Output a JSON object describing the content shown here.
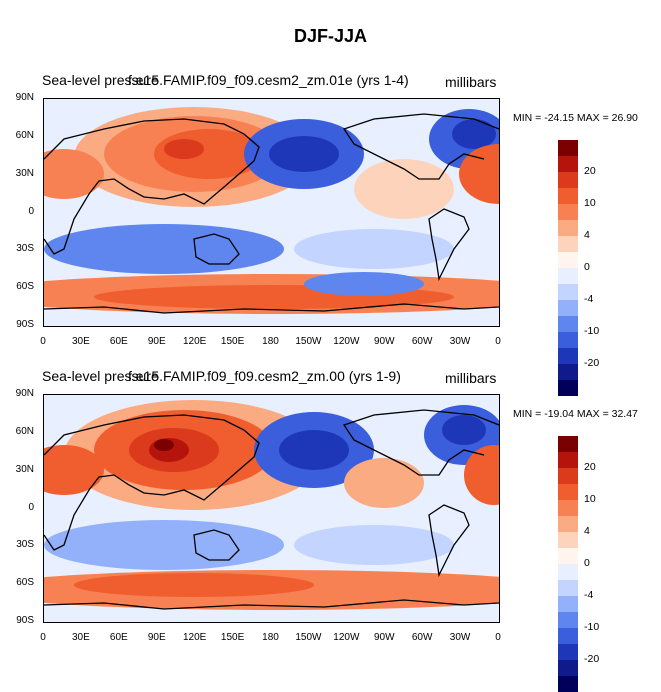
{
  "main_title": "DJF-JJA",
  "colors": {
    "levels": [
      "#7b0000",
      "#b5140c",
      "#db3a1c",
      "#f05d2e",
      "#f88154",
      "#fbab82",
      "#fdd4bb",
      "#fff4ee",
      "#e8efff",
      "#c2d4ff",
      "#93b0fa",
      "#5f86ee",
      "#3a5edc",
      "#1e37b8",
      "#0f1b8a",
      "#00005a"
    ]
  },
  "panels": [
    {
      "left_title": "Sea-level pressure",
      "case_title": "f.e15.FAMIP.f09_f09.cesm2_zm.01e (yrs 1-4)",
      "units": "millibars",
      "min_max": "MIN = -24.15 MAX =  26.90"
    },
    {
      "left_title": "Sea-level pressure",
      "case_title": "f.e15.FAMIP.f09_f09.cesm2_zm.00 (yrs 1-9)",
      "units": "millibars",
      "min_max": "MIN = -19.04 MAX =  32.47"
    }
  ],
  "axes": {
    "lat_labels": [
      "90N",
      "60N",
      "30N",
      "0",
      "30S",
      "60S",
      "90S"
    ],
    "lon_labels": [
      "0",
      "30E",
      "60E",
      "90E",
      "120E",
      "150E",
      "180",
      "150W",
      "120W",
      "90W",
      "60W",
      "30W",
      "0"
    ]
  },
  "colorbar": {
    "labels": [
      "20",
      "10",
      "4",
      "0",
      "-4",
      "-10",
      "-20"
    ]
  },
  "chart_data": [
    {
      "type": "heatmap",
      "title": "DJF-JJA",
      "subtitle": "f.e15.FAMIP.f09_f09.cesm2_zm.01e (yrs 1-4)",
      "variable": "Sea-level pressure",
      "units": "millibars",
      "min": -24.15,
      "max": 26.9,
      "xlim": [
        0,
        360
      ],
      "ylim": [
        -90,
        90
      ],
      "levels": [
        -25,
        -20,
        -15,
        -10,
        -8,
        -6,
        -4,
        -2,
        0,
        2,
        4,
        6,
        8,
        10,
        15,
        20,
        25
      ]
    },
    {
      "type": "heatmap",
      "title": "DJF-JJA",
      "subtitle": "f.e15.FAMIP.f09_f09.cesm2_zm.00 (yrs 1-9)",
      "variable": "Sea-level pressure",
      "units": "millibars",
      "min": -19.04,
      "max": 32.47,
      "xlim": [
        0,
        360
      ],
      "ylim": [
        -90,
        90
      ],
      "levels": [
        -25,
        -20,
        -15,
        -10,
        -8,
        -6,
        -4,
        -2,
        0,
        2,
        4,
        6,
        8,
        10,
        15,
        20,
        25
      ]
    }
  ]
}
